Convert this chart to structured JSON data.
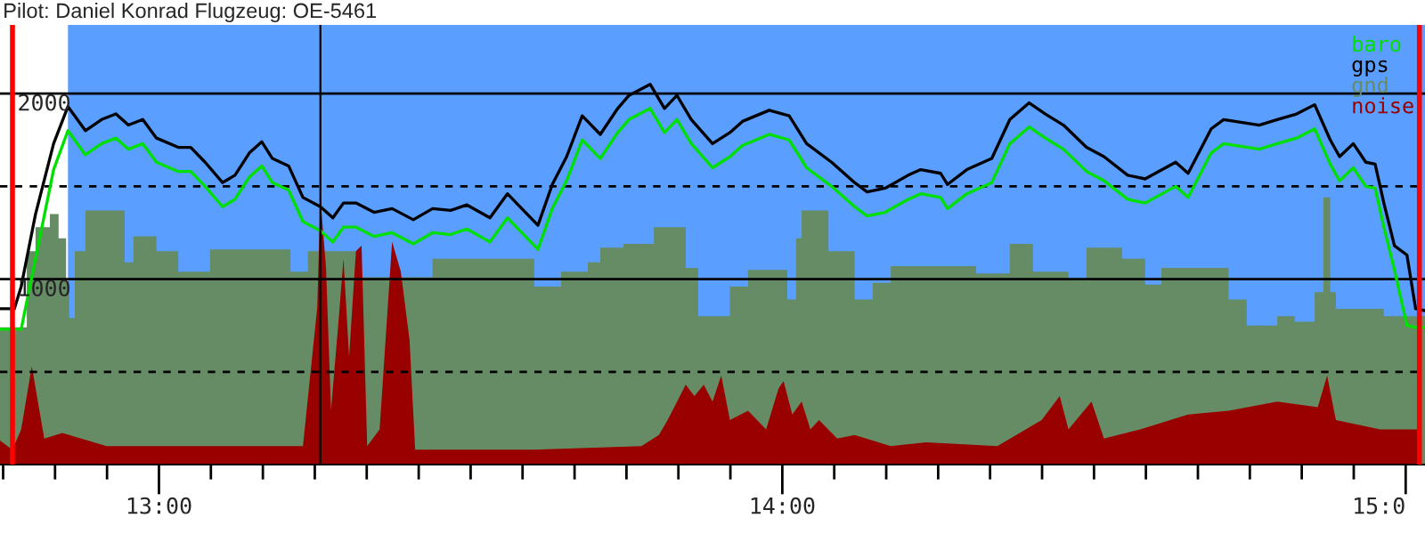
{
  "chart_data": {
    "type": "line",
    "title": "Pilot: Daniel Konrad Flugzeug: OE-5461",
    "xlim": [
      12.745,
      15.031
    ],
    "xticks": [
      {
        "value": 12.75,
        "label": null
      },
      {
        "value": 12.8333,
        "label": null
      },
      {
        "value": 12.9167,
        "label": null
      },
      {
        "value": 13,
        "label": "13:00"
      },
      {
        "value": 13.0833,
        "label": null
      },
      {
        "value": 13.1667,
        "label": null
      },
      {
        "value": 13.25,
        "label": null
      },
      {
        "value": 13.3333,
        "label": null
      },
      {
        "value": 13.4167,
        "label": null
      },
      {
        "value": 13.5,
        "label": null
      },
      {
        "value": 13.5833,
        "label": null
      },
      {
        "value": 13.6667,
        "label": null
      },
      {
        "value": 13.75,
        "label": null
      },
      {
        "value": 13.8333,
        "label": null
      },
      {
        "value": 13.9167,
        "label": null
      },
      {
        "value": 14,
        "label": "14:00"
      },
      {
        "value": 14.0833,
        "label": null
      },
      {
        "value": 14.1667,
        "label": null
      },
      {
        "value": 14.25,
        "label": null
      },
      {
        "value": 14.3333,
        "label": null
      },
      {
        "value": 14.4167,
        "label": null
      },
      {
        "value": 14.5,
        "label": null
      },
      {
        "value": 14.5833,
        "label": null
      },
      {
        "value": 14.6667,
        "label": null
      },
      {
        "value": 14.75,
        "label": null
      },
      {
        "value": 14.8333,
        "label": null
      },
      {
        "value": 14.9167,
        "label": null
      },
      {
        "value": 15,
        "label": "15:0"
      }
    ],
    "ylim": [
      0,
      2370
    ],
    "yticks": [
      {
        "value": 500,
        "label": null
      },
      1000,
      {
        "value": 1500,
        "label": null
      },
      2000
    ],
    "grid": "y",
    "legend": "top right",
    "bands": [
      {
        "axis": "x",
        "from": 12.854,
        "to": 15.031,
        "color": "#5a9eff"
      }
    ],
    "ref_lines": [
      {
        "axis": "x",
        "value": 12.765,
        "color": "#ff0000"
      },
      {
        "axis": "x",
        "value": 13.259,
        "color": "#000000"
      },
      {
        "axis": "x",
        "value": 15.022,
        "color": "#ff0000"
      }
    ],
    "series": [
      {
        "name": "gnd",
        "type": "area",
        "color": "#658c64",
        "x": [
          12.745,
          12.788,
          12.788,
          12.802,
          12.802,
          12.825,
          12.825,
          12.839,
          12.839,
          12.851,
          12.851,
          12.856,
          12.856,
          12.865,
          12.865,
          12.882,
          12.882,
          12.945,
          12.945,
          12.959,
          12.959,
          12.996,
          12.996,
          13.031,
          13.031,
          13.082,
          13.082,
          13.211,
          13.211,
          13.239,
          13.239,
          13.316,
          13.316,
          13.439,
          13.439,
          13.602,
          13.602,
          13.645,
          13.645,
          13.688,
          13.688,
          13.708,
          13.708,
          13.745,
          13.745,
          13.794,
          13.794,
          13.845,
          13.845,
          13.865,
          13.865,
          13.916,
          13.916,
          13.945,
          13.945,
          14.008,
          14.008,
          14.022,
          14.022,
          14.031,
          14.031,
          14.074,
          14.074,
          14.116,
          14.116,
          14.145,
          14.145,
          14.174,
          14.174,
          14.311,
          14.311,
          14.365,
          14.365,
          14.402,
          14.402,
          14.459,
          14.459,
          14.488,
          14.488,
          14.545,
          14.545,
          14.582,
          14.582,
          14.608,
          14.608,
          14.716,
          14.716,
          14.745,
          14.745,
          14.794,
          14.794,
          14.822,
          14.822,
          14.854,
          14.854,
          14.868,
          14.868,
          14.879,
          14.879,
          14.888,
          14.888,
          14.965,
          14.965,
          15.031
        ],
        "values": [
          740,
          740,
          1150,
          1150,
          1280,
          1280,
          1350,
          1350,
          1220,
          1220,
          990,
          990,
          790,
          790,
          1150,
          1150,
          1370,
          1370,
          1090,
          1090,
          1230,
          1230,
          1150,
          1150,
          1040,
          1040,
          1160,
          1160,
          1040,
          1040,
          1150,
          1150,
          1010,
          1010,
          1110,
          1110,
          960,
          960,
          1040,
          1040,
          1090,
          1090,
          1170,
          1170,
          1190,
          1190,
          1280,
          1280,
          1060,
          1060,
          800,
          800,
          960,
          960,
          1050,
          1050,
          890,
          890,
          1220,
          1220,
          1370,
          1370,
          1150,
          1150,
          890,
          890,
          980,
          980,
          1070,
          1070,
          1030,
          1030,
          1190,
          1190,
          1040,
          1040,
          1000,
          1000,
          1170,
          1170,
          1110,
          1110,
          970,
          970,
          1060,
          1060,
          890,
          890,
          750,
          750,
          800,
          800,
          770,
          770,
          930,
          930,
          1440,
          1440,
          930,
          930,
          840,
          840,
          800,
          800
        ]
      },
      {
        "name": "noise",
        "type": "area",
        "color": "#990000",
        "x": [
          12.745,
          12.765,
          12.779,
          12.796,
          12.816,
          12.845,
          12.916,
          13.231,
          13.254,
          13.259,
          13.268,
          13.276,
          13.288,
          13.296,
          13.305,
          13.316,
          13.325,
          13.334,
          13.354,
          13.374,
          13.388,
          13.402,
          13.411,
          13.602,
          13.774,
          13.802,
          13.816,
          13.845,
          13.859,
          13.874,
          13.888,
          13.902,
          13.916,
          13.945,
          13.974,
          13.994,
          14.002,
          14.016,
          14.031,
          14.045,
          14.059,
          14.088,
          14.116,
          14.174,
          14.231,
          14.345,
          14.416,
          14.445,
          14.459,
          14.496,
          14.516,
          14.574,
          14.651,
          14.716,
          14.794,
          14.859,
          14.874,
          14.888,
          14.959,
          15.022
        ],
        "values": [
          130,
          80,
          190,
          530,
          140,
          170,
          100,
          100,
          850,
          1440,
          1060,
          290,
          770,
          1110,
          580,
          1150,
          1180,
          100,
          190,
          1200,
          1040,
          670,
          80,
          80,
          100,
          160,
          240,
          430,
          370,
          430,
          340,
          480,
          240,
          290,
          190,
          410,
          450,
          270,
          340,
          190,
          240,
          140,
          160,
          100,
          120,
          100,
          240,
          370,
          190,
          340,
          140,
          190,
          270,
          290,
          340,
          310,
          480,
          240,
          190,
          190
        ]
      },
      {
        "name": "baro",
        "color": "#00e000",
        "x": [
          12.745,
          12.779,
          12.802,
          12.831,
          12.854,
          12.882,
          12.908,
          12.931,
          12.951,
          12.974,
          12.996,
          13.031,
          13.051,
          13.074,
          13.102,
          13.122,
          13.145,
          13.165,
          13.182,
          13.208,
          13.231,
          13.259,
          13.279,
          13.296,
          13.316,
          13.345,
          13.374,
          13.408,
          13.439,
          13.468,
          13.494,
          13.531,
          13.559,
          13.582,
          13.608,
          13.631,
          13.654,
          13.679,
          13.708,
          13.736,
          13.754,
          13.788,
          13.811,
          13.831,
          13.854,
          13.888,
          13.916,
          13.936,
          13.979,
          14.011,
          14.039,
          14.079,
          14.116,
          14.136,
          14.165,
          14.202,
          14.222,
          14.254,
          14.265,
          14.296,
          14.336,
          14.365,
          14.396,
          14.422,
          14.451,
          14.488,
          14.516,
          14.554,
          14.582,
          14.631,
          14.651,
          14.688,
          14.708,
          14.765,
          14.794,
          14.825,
          14.854,
          14.879,
          14.894,
          14.916,
          14.936,
          14.951,
          14.965,
          14.982,
          15.002,
          15.016,
          15.031
        ],
        "values": [
          730,
          730,
          1110,
          1590,
          1800,
          1670,
          1730,
          1760,
          1700,
          1730,
          1630,
          1580,
          1580,
          1500,
          1390,
          1430,
          1550,
          1610,
          1520,
          1480,
          1310,
          1260,
          1200,
          1280,
          1280,
          1230,
          1250,
          1190,
          1250,
          1240,
          1270,
          1200,
          1330,
          1250,
          1160,
          1380,
          1530,
          1750,
          1650,
          1790,
          1860,
          1920,
          1790,
          1860,
          1730,
          1600,
          1660,
          1720,
          1780,
          1750,
          1600,
          1500,
          1390,
          1340,
          1360,
          1430,
          1460,
          1440,
          1380,
          1460,
          1520,
          1730,
          1820,
          1760,
          1700,
          1580,
          1530,
          1430,
          1410,
          1500,
          1440,
          1680,
          1730,
          1700,
          1730,
          1760,
          1810,
          1620,
          1530,
          1600,
          1500,
          1490,
          1280,
          1050,
          750,
          740,
          740
        ]
      },
      {
        "name": "gps",
        "color": "#000000",
        "x": [
          12.745,
          12.768,
          12.779,
          12.802,
          12.831,
          12.854,
          12.882,
          12.908,
          12.931,
          12.951,
          12.974,
          12.996,
          13.031,
          13.051,
          13.074,
          13.102,
          13.122,
          13.145,
          13.165,
          13.182,
          13.208,
          13.231,
          13.259,
          13.279,
          13.296,
          13.316,
          13.345,
          13.374,
          13.408,
          13.439,
          13.468,
          13.494,
          13.531,
          13.559,
          13.582,
          13.608,
          13.631,
          13.654,
          13.679,
          13.708,
          13.736,
          13.754,
          13.788,
          13.811,
          13.831,
          13.854,
          13.888,
          13.916,
          13.936,
          13.979,
          14.011,
          14.039,
          14.079,
          14.116,
          14.136,
          14.165,
          14.202,
          14.222,
          14.254,
          14.265,
          14.296,
          14.336,
          14.365,
          14.396,
          14.422,
          14.451,
          14.488,
          14.516,
          14.554,
          14.582,
          14.631,
          14.651,
          14.688,
          14.708,
          14.765,
          14.794,
          14.825,
          14.854,
          14.879,
          14.894,
          14.916,
          14.936,
          14.951,
          14.965,
          14.982,
          15.002,
          15.016,
          15.031
        ],
        "values": [
          840,
          840,
          960,
          1350,
          1730,
          1930,
          1800,
          1860,
          1890,
          1830,
          1860,
          1760,
          1710,
          1710,
          1630,
          1520,
          1560,
          1680,
          1740,
          1650,
          1610,
          1440,
          1390,
          1330,
          1410,
          1410,
          1360,
          1380,
          1320,
          1380,
          1370,
          1400,
          1330,
          1460,
          1380,
          1290,
          1510,
          1660,
          1880,
          1780,
          1920,
          1990,
          2050,
          1920,
          1990,
          1860,
          1730,
          1790,
          1850,
          1910,
          1880,
          1730,
          1630,
          1520,
          1470,
          1490,
          1560,
          1590,
          1570,
          1510,
          1590,
          1650,
          1860,
          1950,
          1890,
          1830,
          1710,
          1660,
          1560,
          1540,
          1630,
          1570,
          1810,
          1860,
          1830,
          1860,
          1890,
          1940,
          1750,
          1660,
          1730,
          1630,
          1620,
          1410,
          1180,
          1130,
          840,
          830
        ]
      }
    ]
  }
}
